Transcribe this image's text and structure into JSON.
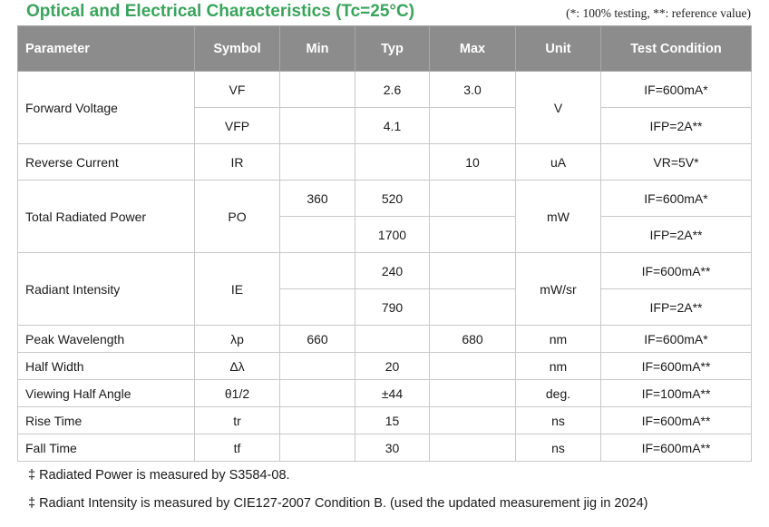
{
  "title": "Optical and Electrical Characteristics (Tc=25°C)",
  "legend_note": "(*: 100% testing, **: reference value)",
  "headers": [
    "Parameter",
    "Symbol",
    "Min",
    "Typ",
    "Max",
    "Unit",
    "Test Condition"
  ],
  "rows": {
    "forward_voltage": {
      "parameter": "Forward Voltage",
      "unit": "V",
      "a": {
        "symbol": "VF",
        "min": "",
        "typ": "2.6",
        "max": "3.0",
        "cond": "IF=600mA*"
      },
      "b": {
        "symbol": "VFP",
        "min": "",
        "typ": "4.1",
        "max": "",
        "cond": "IFP=2A**"
      }
    },
    "reverse_current": {
      "parameter": "Reverse Current",
      "symbol": "IR",
      "min": "",
      "typ": "",
      "max": "10",
      "unit": "uA",
      "cond": "VR=5V*"
    },
    "total_radiated_power": {
      "parameter": "Total Radiated Power",
      "symbol": "PO",
      "unit": "mW",
      "a": {
        "min": "360",
        "typ": "520",
        "max": "",
        "cond": "IF=600mA*"
      },
      "b": {
        "min": "",
        "typ": "1700",
        "max": "",
        "cond": "IFP=2A**"
      }
    },
    "radiant_intensity": {
      "parameter": "Radiant Intensity",
      "symbol": "IE",
      "unit": "mW/sr",
      "a": {
        "min": "",
        "typ": "240",
        "max": "",
        "cond": "IF=600mA**"
      },
      "b": {
        "min": "",
        "typ": "790",
        "max": "",
        "cond": "IFP=2A**"
      }
    },
    "peak_wavelength": {
      "parameter": "Peak Wavelength",
      "symbol": "λp",
      "min": "660",
      "typ": "",
      "max": "680",
      "unit": "nm",
      "cond": "IF=600mA*"
    },
    "half_width": {
      "parameter": "Half Width",
      "symbol": "Δλ",
      "min": "",
      "typ": "20",
      "max": "",
      "unit": "nm",
      "cond": "IF=600mA**"
    },
    "viewing_half_angle": {
      "parameter": "Viewing Half Angle",
      "symbol": "θ1/2",
      "min": "",
      "typ": "±44",
      "max": "",
      "unit": "deg.",
      "cond": "IF=100mA**"
    },
    "rise_time": {
      "parameter": "Rise Time",
      "symbol": "tr",
      "min": "",
      "typ": "15",
      "max": "",
      "unit": "ns",
      "cond": "IF=600mA**"
    },
    "fall_time": {
      "parameter": "Fall Time",
      "symbol": "tf",
      "min": "",
      "typ": "30",
      "max": "",
      "unit": "ns",
      "cond": "IF=600mA**"
    }
  },
  "footnotes": {
    "marker": "‡",
    "note1": "Radiated Power is measured by S3584-08.",
    "note2": "Radiant Intensity is measured by CIE127-2007 Condition B. (used the updated measurement jig in 2024)"
  }
}
